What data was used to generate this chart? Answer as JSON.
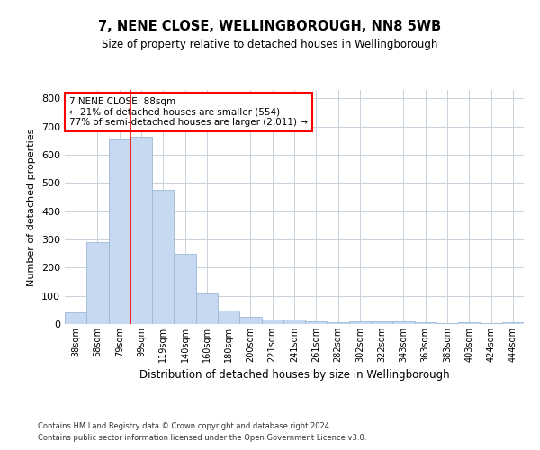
{
  "title": "7, NENE CLOSE, WELLINGBOROUGH, NN8 5WB",
  "subtitle": "Size of property relative to detached houses in Wellingborough",
  "xlabel": "Distribution of detached houses by size in Wellingborough",
  "ylabel": "Number of detached properties",
  "categories": [
    "38sqm",
    "58sqm",
    "79sqm",
    "99sqm",
    "119sqm",
    "140sqm",
    "160sqm",
    "180sqm",
    "200sqm",
    "221sqm",
    "241sqm",
    "261sqm",
    "282sqm",
    "302sqm",
    "322sqm",
    "343sqm",
    "363sqm",
    "383sqm",
    "403sqm",
    "424sqm",
    "444sqm"
  ],
  "values": [
    43,
    290,
    655,
    665,
    475,
    250,
    110,
    48,
    25,
    15,
    15,
    8,
    7,
    10,
    8,
    8,
    5,
    2,
    5,
    2,
    5
  ],
  "bar_color": "#c6d9f1",
  "bar_edge_color": "#9db8d9",
  "red_line_x": 2.5,
  "annotation_line1": "7 NENE CLOSE: 88sqm",
  "annotation_line2": "← 21% of detached houses are smaller (554)",
  "annotation_line3": "77% of semi-detached houses are larger (2,011) →",
  "ylim": [
    0,
    830
  ],
  "yticks": [
    0,
    100,
    200,
    300,
    400,
    500,
    600,
    700,
    800
  ],
  "footer1": "Contains HM Land Registry data © Crown copyright and database right 2024.",
  "footer2": "Contains public sector information licensed under the Open Government Licence v3.0.",
  "bg_color": "#ffffff",
  "grid_color": "#c8d0dc"
}
